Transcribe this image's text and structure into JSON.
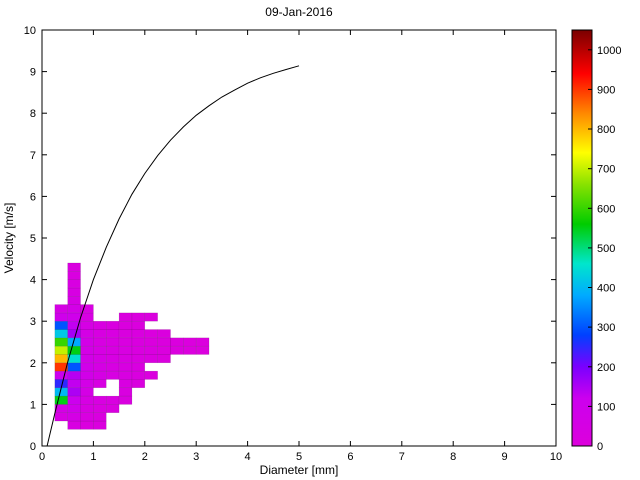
{
  "figure": {
    "title": "09-Jan-2016"
  },
  "chart_data": {
    "type": "heatmap",
    "title": "09-Jan-2016",
    "xlabel": "Diameter [mm]",
    "ylabel": "Velocity [m/s]",
    "xlim": [
      0,
      10
    ],
    "ylim": [
      0,
      10
    ],
    "x_ticks": [
      0,
      1,
      2,
      3,
      4,
      5,
      6,
      7,
      8,
      9,
      10
    ],
    "y_ticks": [
      0,
      1,
      2,
      3,
      4,
      5,
      6,
      7,
      8,
      9,
      10
    ],
    "grid": false,
    "legend": "none",
    "background": "#ffffff",
    "cell_size": {
      "w": 0.25,
      "h": 0.2
    },
    "cells": [
      [
        0.25,
        0.6,
        40
      ],
      [
        0.25,
        0.8,
        60
      ],
      [
        0.25,
        1.0,
        550
      ],
      [
        0.25,
        1.2,
        400
      ],
      [
        0.25,
        1.4,
        250
      ],
      [
        0.25,
        1.6,
        120
      ],
      [
        0.25,
        1.8,
        900
      ],
      [
        0.25,
        2.0,
        800
      ],
      [
        0.25,
        2.2,
        700
      ],
      [
        0.25,
        2.4,
        600
      ],
      [
        0.25,
        2.6,
        420
      ],
      [
        0.25,
        2.8,
        300
      ],
      [
        0.25,
        3.0,
        100
      ],
      [
        0.25,
        3.2,
        50
      ],
      [
        0.5,
        0.4,
        30
      ],
      [
        0.5,
        0.6,
        60
      ],
      [
        0.5,
        0.8,
        90
      ],
      [
        0.5,
        1.0,
        120
      ],
      [
        0.5,
        1.2,
        150
      ],
      [
        0.5,
        1.4,
        130
      ],
      [
        0.5,
        1.6,
        140
      ],
      [
        0.5,
        1.8,
        300
      ],
      [
        0.5,
        2.0,
        450
      ],
      [
        0.5,
        2.2,
        550
      ],
      [
        0.5,
        2.4,
        380
      ],
      [
        0.5,
        2.6,
        160
      ],
      [
        0.5,
        2.8,
        130
      ],
      [
        0.5,
        3.0,
        100
      ],
      [
        0.5,
        3.2,
        70
      ],
      [
        0.5,
        3.4,
        50
      ],
      [
        0.5,
        3.6,
        40
      ],
      [
        0.5,
        3.8,
        30
      ],
      [
        0.5,
        4.0,
        25
      ],
      [
        0.5,
        4.2,
        20
      ],
      [
        0.75,
        0.4,
        15
      ],
      [
        0.75,
        0.6,
        25
      ],
      [
        0.75,
        0.8,
        35
      ],
      [
        0.75,
        1.0,
        45
      ],
      [
        0.75,
        1.2,
        60
      ],
      [
        0.75,
        1.4,
        70
      ],
      [
        0.75,
        1.6,
        80
      ],
      [
        0.75,
        1.8,
        85
      ],
      [
        0.75,
        2.0,
        75
      ],
      [
        0.75,
        2.2,
        65
      ],
      [
        0.75,
        2.4,
        70
      ],
      [
        0.75,
        2.6,
        60
      ],
      [
        0.75,
        2.8,
        50
      ],
      [
        0.75,
        3.0,
        40
      ],
      [
        0.75,
        3.2,
        30
      ],
      [
        1.0,
        0.4,
        12
      ],
      [
        1.0,
        0.6,
        20
      ],
      [
        1.0,
        0.8,
        25
      ],
      [
        1.0,
        1.0,
        30
      ],
      [
        1.0,
        1.4,
        40
      ],
      [
        1.0,
        1.6,
        50
      ],
      [
        1.0,
        1.8,
        55
      ],
      [
        1.0,
        2.0,
        50
      ],
      [
        1.0,
        2.2,
        45
      ],
      [
        1.0,
        2.4,
        40
      ],
      [
        1.0,
        2.6,
        35
      ],
      [
        1.0,
        2.8,
        30
      ],
      [
        1.25,
        0.8,
        20
      ],
      [
        1.25,
        1.0,
        25
      ],
      [
        1.25,
        1.6,
        40
      ],
      [
        1.25,
        1.8,
        40
      ],
      [
        1.25,
        2.0,
        40
      ],
      [
        1.25,
        2.2,
        35
      ],
      [
        1.25,
        2.4,
        30
      ],
      [
        1.25,
        2.6,
        30
      ],
      [
        1.25,
        2.8,
        25
      ],
      [
        1.5,
        1.0,
        20
      ],
      [
        1.5,
        1.2,
        25
      ],
      [
        1.5,
        1.4,
        30
      ],
      [
        1.5,
        1.6,
        30
      ],
      [
        1.5,
        1.8,
        30
      ],
      [
        1.5,
        2.0,
        30
      ],
      [
        1.5,
        2.2,
        30
      ],
      [
        1.5,
        2.4,
        25
      ],
      [
        1.5,
        2.6,
        20
      ],
      [
        1.5,
        2.8,
        15
      ],
      [
        1.5,
        3.0,
        15
      ],
      [
        1.75,
        1.4,
        20
      ],
      [
        1.75,
        1.6,
        20
      ],
      [
        1.75,
        1.8,
        25
      ],
      [
        1.75,
        2.0,
        25
      ],
      [
        1.75,
        2.2,
        20
      ],
      [
        1.75,
        2.4,
        20
      ],
      [
        1.75,
        2.6,
        20
      ],
      [
        1.75,
        2.8,
        15
      ],
      [
        1.75,
        3.0,
        15
      ],
      [
        2.0,
        1.6,
        15
      ],
      [
        2.0,
        2.0,
        20
      ],
      [
        2.0,
        2.2,
        20
      ],
      [
        2.0,
        2.4,
        15
      ],
      [
        2.0,
        2.6,
        15
      ],
      [
        2.0,
        3.0,
        12
      ],
      [
        2.25,
        2.0,
        15
      ],
      [
        2.25,
        2.2,
        15
      ],
      [
        2.25,
        2.4,
        12
      ],
      [
        2.25,
        2.6,
        12
      ],
      [
        2.5,
        2.2,
        12
      ],
      [
        2.5,
        2.4,
        12
      ],
      [
        2.75,
        2.2,
        10
      ],
      [
        2.75,
        2.4,
        10
      ],
      [
        3.0,
        2.2,
        10
      ],
      [
        3.0,
        2.4,
        10
      ]
    ],
    "curve": {
      "name": "terminal-velocity-curve",
      "color": "#000000",
      "points": [
        [
          0.1,
          0
        ],
        [
          0.25,
          0.79
        ],
        [
          0.5,
          2.02
        ],
        [
          0.75,
          3.08
        ],
        [
          1,
          4.0
        ],
        [
          1.25,
          4.78
        ],
        [
          1.5,
          5.46
        ],
        [
          1.75,
          6.05
        ],
        [
          2,
          6.55
        ],
        [
          2.25,
          6.98
        ],
        [
          2.5,
          7.35
        ],
        [
          2.75,
          7.67
        ],
        [
          3,
          7.95
        ],
        [
          3.25,
          8.18
        ],
        [
          3.5,
          8.39
        ],
        [
          3.75,
          8.56
        ],
        [
          4,
          8.72
        ],
        [
          4.25,
          8.85
        ],
        [
          4.5,
          8.96
        ],
        [
          4.75,
          9.05
        ],
        [
          5,
          9.14
        ]
      ]
    },
    "colorbar": {
      "min": 0,
      "max": 1050,
      "ticks": [
        0,
        100,
        200,
        300,
        400,
        500,
        600,
        700,
        800,
        900,
        1000
      ],
      "stops": [
        {
          "v": 0,
          "c": "#dc00dc"
        },
        {
          "v": 120,
          "c": "#cc00ee"
        },
        {
          "v": 200,
          "c": "#7a00ff"
        },
        {
          "v": 280,
          "c": "#0040ff"
        },
        {
          "v": 380,
          "c": "#00aaff"
        },
        {
          "v": 460,
          "c": "#00e6cc"
        },
        {
          "v": 560,
          "c": "#00cc00"
        },
        {
          "v": 660,
          "c": "#88e200"
        },
        {
          "v": 740,
          "c": "#ffff00"
        },
        {
          "v": 840,
          "c": "#ff8800"
        },
        {
          "v": 940,
          "c": "#ff0000"
        },
        {
          "v": 1050,
          "c": "#7a0000"
        }
      ]
    }
  }
}
